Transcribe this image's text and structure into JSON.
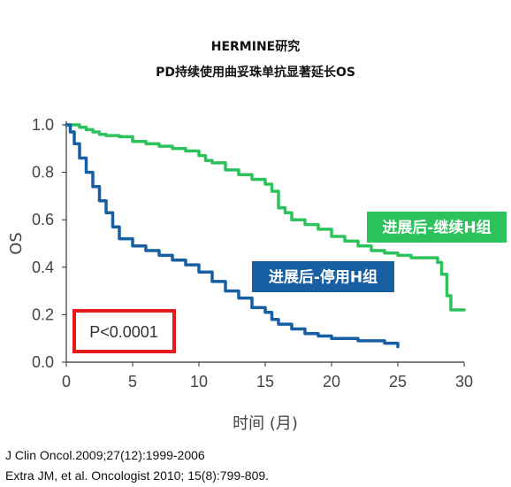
{
  "header": {
    "title": "HERMINE研究",
    "subtitle": "PD持续使用曲妥珠单抗显著延长OS"
  },
  "references": [
    "J Clin Oncol.2009;27(12):1999-2006",
    "Extra JM, et al. Oncologist 2010; 15(8):799-809."
  ],
  "chart_data": {
    "type": "line",
    "title": "HERMINE研究",
    "subtitle": "PD持续使用曲妥珠单抗显著延长OS",
    "xlabel": "时间 (月)",
    "ylabel": "OS",
    "xlim": [
      0,
      30
    ],
    "ylim": [
      0,
      1.0
    ],
    "xticks": [
      "0",
      "5",
      "10",
      "15",
      "20",
      "25",
      "30"
    ],
    "yticks": [
      "0.0",
      "0.2",
      "0.4",
      "0.6",
      "0.8",
      "1.0"
    ],
    "grid": false,
    "series": [
      {
        "name": "进展后-继续H组",
        "color": "#2cc35c",
        "x": [
          0,
          1,
          1.5,
          2,
          2.5,
          3,
          4,
          5,
          6,
          7,
          8,
          9,
          10,
          10.5,
          11,
          12,
          13,
          14,
          15,
          15.5,
          16,
          16.5,
          17,
          18,
          19,
          20,
          21,
          22,
          23,
          24,
          25,
          26,
          27,
          28,
          28.3,
          28.7,
          29,
          30
        ],
        "y": [
          1.0,
          0.99,
          0.98,
          0.97,
          0.96,
          0.955,
          0.95,
          0.93,
          0.92,
          0.91,
          0.9,
          0.89,
          0.87,
          0.85,
          0.84,
          0.81,
          0.79,
          0.77,
          0.75,
          0.72,
          0.65,
          0.63,
          0.6,
          0.58,
          0.56,
          0.53,
          0.51,
          0.49,
          0.47,
          0.46,
          0.45,
          0.44,
          0.44,
          0.42,
          0.37,
          0.28,
          0.22,
          0.22
        ]
      },
      {
        "name": "进展后-停用H组",
        "color": "#175ea3",
        "x": [
          0,
          0.3,
          0.6,
          1,
          1.5,
          2,
          2.5,
          3,
          3.5,
          4,
          5,
          6,
          7,
          8,
          9,
          10,
          11,
          12,
          13,
          14,
          15,
          15.5,
          16,
          17,
          18,
          19,
          20,
          22,
          24,
          25
        ],
        "y": [
          1.0,
          0.97,
          0.92,
          0.86,
          0.8,
          0.74,
          0.68,
          0.63,
          0.57,
          0.52,
          0.49,
          0.47,
          0.45,
          0.43,
          0.41,
          0.38,
          0.34,
          0.3,
          0.27,
          0.23,
          0.21,
          0.18,
          0.16,
          0.14,
          0.12,
          0.11,
          0.1,
          0.09,
          0.08,
          0.065
        ]
      }
    ],
    "legend": [
      {
        "label": "进展后-继续H组",
        "color": "#2cc35c",
        "placement": "right, above green curve"
      },
      {
        "label": "进展后-停用H组",
        "color": "#175ea3",
        "placement": "center, above blue curve"
      }
    ],
    "annotations": [
      {
        "text": "P<0.0001",
        "border_color": "#e31b1b",
        "placement": "bottom-left"
      }
    ]
  }
}
